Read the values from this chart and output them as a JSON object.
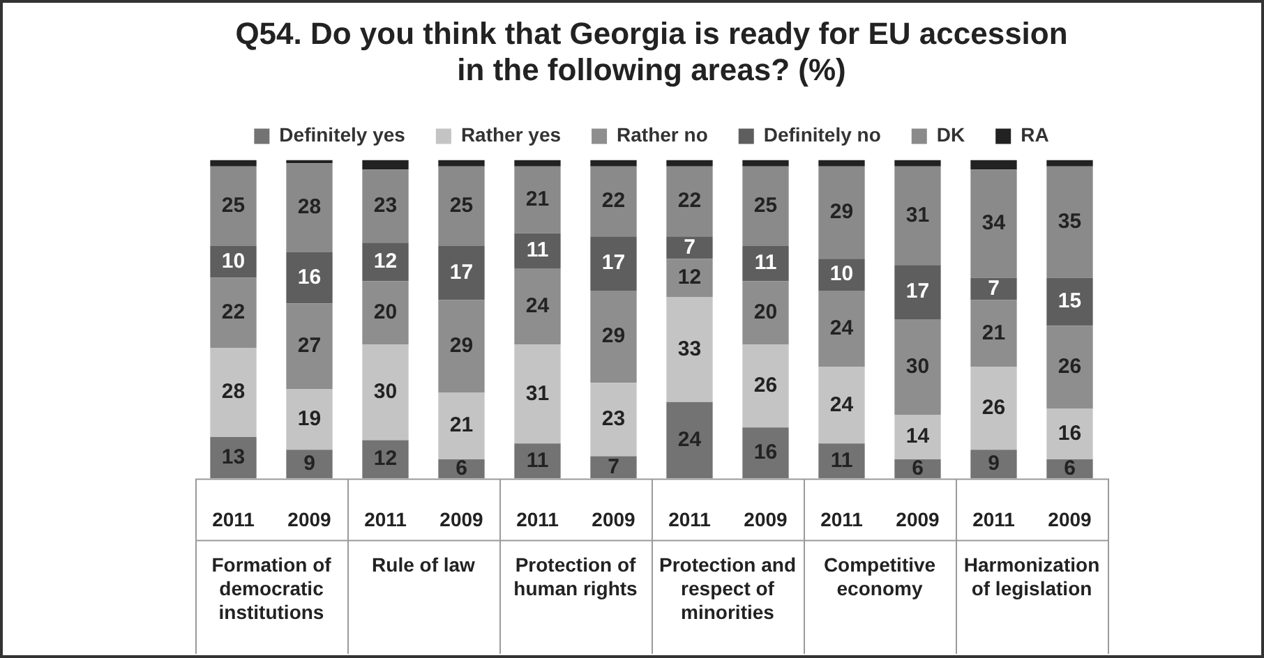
{
  "chart_data": {
    "type": "bar",
    "stacked": true,
    "title": "Q54. Do you think that Georgia is ready for EU accession in the following areas? (%)",
    "categories": [
      "2011",
      "2009",
      "2011",
      "2009",
      "2011",
      "2009",
      "2011",
      "2009",
      "2011",
      "2009",
      "2011",
      "2009"
    ],
    "annotations": [
      "Formation of democratic institutions",
      "Rule of law",
      "Protection of human rights",
      "Protection and respect of minorities",
      "Competitive economy",
      "Harmonization of legislation"
    ],
    "legend": "top",
    "series": [
      {
        "name": "Definitely yes",
        "color": "#737373",
        "values": [
          13,
          9,
          12,
          6,
          11,
          7,
          24,
          16,
          11,
          6,
          9,
          6
        ],
        "value_labels": [
          "13",
          "9",
          "12",
          "6",
          "11",
          "7",
          "24",
          "16",
          "11",
          "6",
          "9",
          "6"
        ]
      },
      {
        "name": "Rather yes",
        "color": "#c4c4c4",
        "values": [
          28,
          19,
          30,
          21,
          31,
          23,
          33,
          26,
          24,
          14,
          26,
          16
        ],
        "value_labels": [
          "28",
          "19",
          "30",
          "21",
          "31",
          "23",
          "33",
          "26",
          "24",
          "14",
          "26",
          "16"
        ]
      },
      {
        "name": "Rather no",
        "color": "#8e8e8e",
        "values": [
          22,
          27,
          20,
          29,
          24,
          29,
          12,
          20,
          24,
          30,
          21,
          26
        ],
        "value_labels": [
          "22",
          "27",
          "20",
          "29",
          "24",
          "29",
          "12",
          "20",
          "24",
          "30",
          "21",
          "26"
        ]
      },
      {
        "name": "Definitely no",
        "color": "#5e5e5e",
        "values": [
          10,
          16,
          12,
          17,
          11,
          17,
          7,
          11,
          10,
          17,
          7,
          15
        ],
        "value_labels": [
          "10",
          "16",
          "12",
          "17",
          "11",
          "17",
          "7",
          "11",
          "10",
          "17",
          "7",
          "15"
        ]
      },
      {
        "name": "DK",
        "color": "#8a8a8a",
        "values": [
          25,
          28,
          23,
          25,
          21,
          22,
          22,
          25,
          29,
          31,
          34,
          35
        ],
        "value_labels": [
          "25",
          "28",
          "23",
          "25",
          "21",
          "22",
          "22",
          "25",
          "29",
          "31",
          "34",
          "35"
        ]
      },
      {
        "name": "RA",
        "color": "#222222",
        "values": [
          2,
          1,
          3,
          2,
          2,
          2,
          2,
          2,
          2,
          2,
          3,
          2
        ]
      }
    ]
  }
}
